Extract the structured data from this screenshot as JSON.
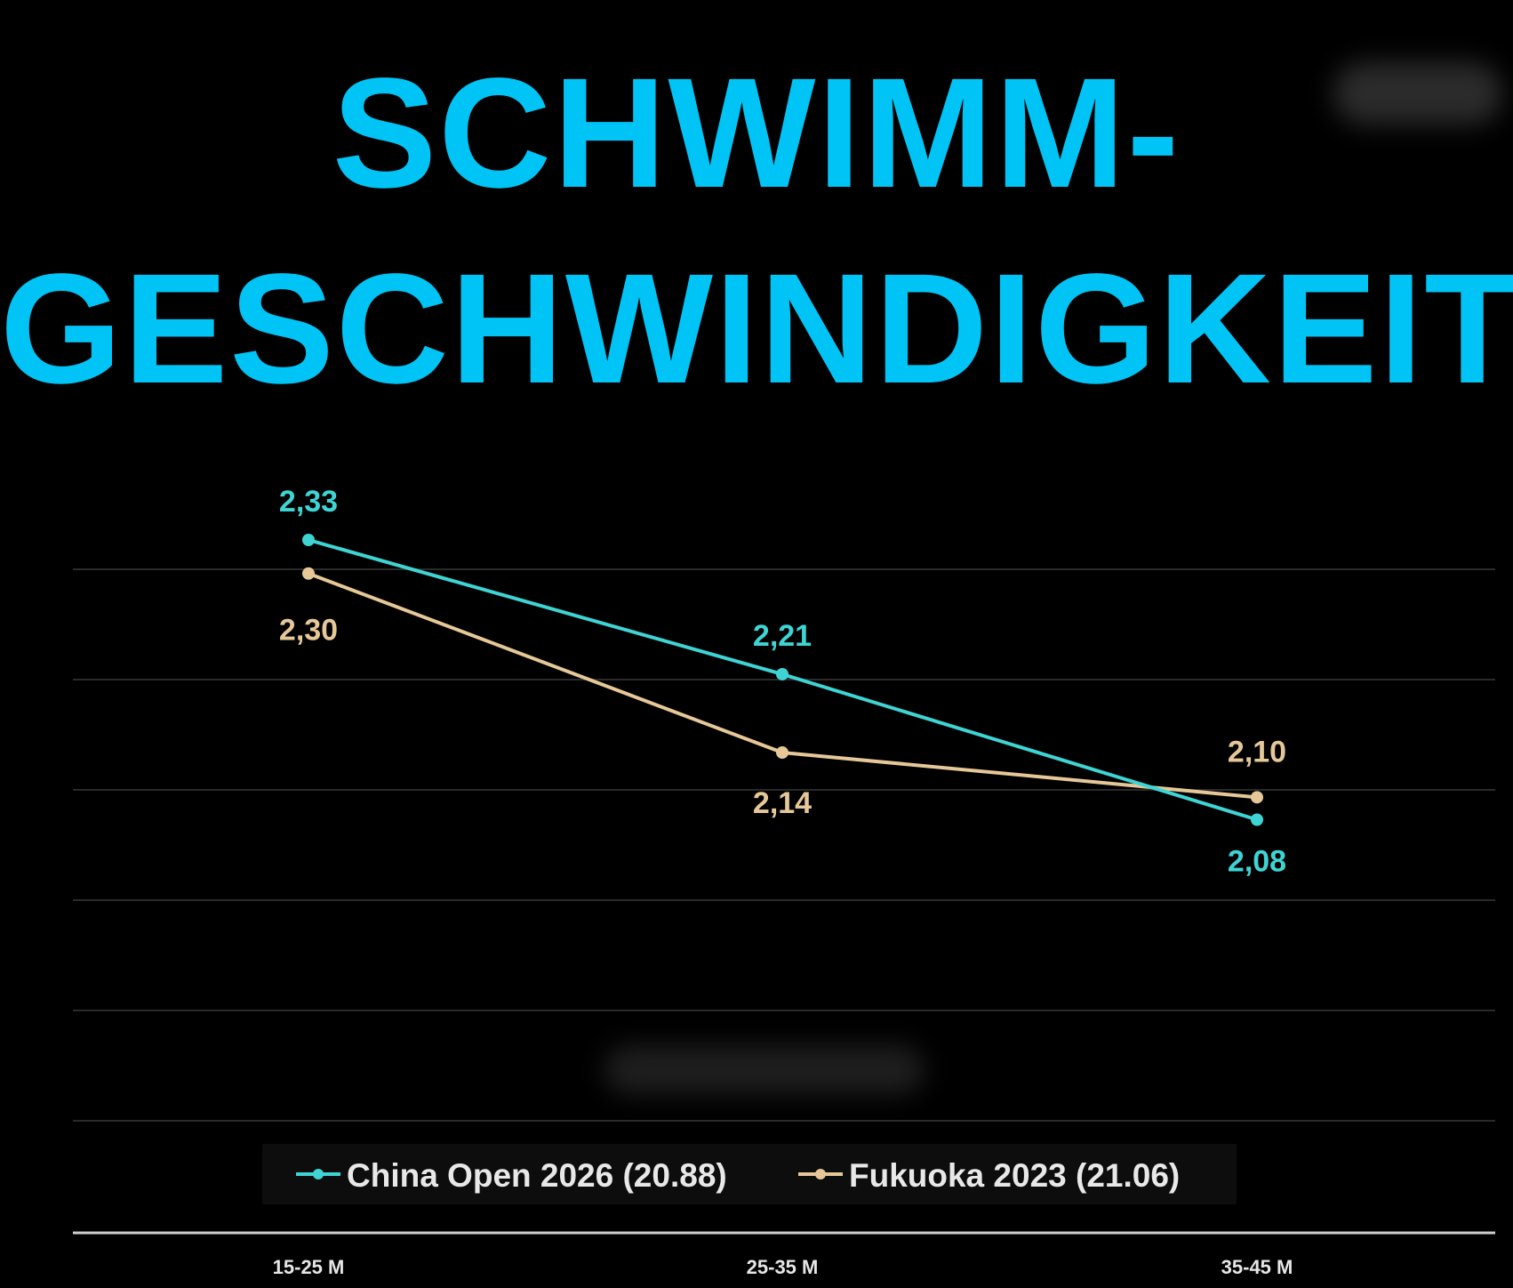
{
  "title_lines": [
    "SCHWIMM-",
    "GESCHWINDIGKEIT"
  ],
  "colors": {
    "title": "#00c4f5",
    "china": "#3fd4d4",
    "fukuoka": "#e6c898",
    "grid": "#2a2a2a",
    "axis": "#cfcfcf"
  },
  "chart_data": {
    "type": "line",
    "title": "SCHWIMM- GESCHWINDIGKEIT",
    "categories": [
      "15-25 M",
      "25-35 M",
      "35-45 M"
    ],
    "series": [
      {
        "name": "China Open 2026 (20.88)",
        "values": [
          2.33,
          2.21,
          2.08
        ],
        "labels": [
          "2,33",
          "2,21",
          "2,08"
        ],
        "color": "#3fd4d4"
      },
      {
        "name": "Fukuoka 2023 (21.06)",
        "values": [
          2.3,
          2.14,
          2.1
        ],
        "labels": [
          "2,30",
          "2,14",
          "2,10"
        ],
        "color": "#e6c898"
      }
    ],
    "ylim": [
      1.9,
      2.36
    ],
    "grid": true,
    "legend_position": "bottom"
  }
}
